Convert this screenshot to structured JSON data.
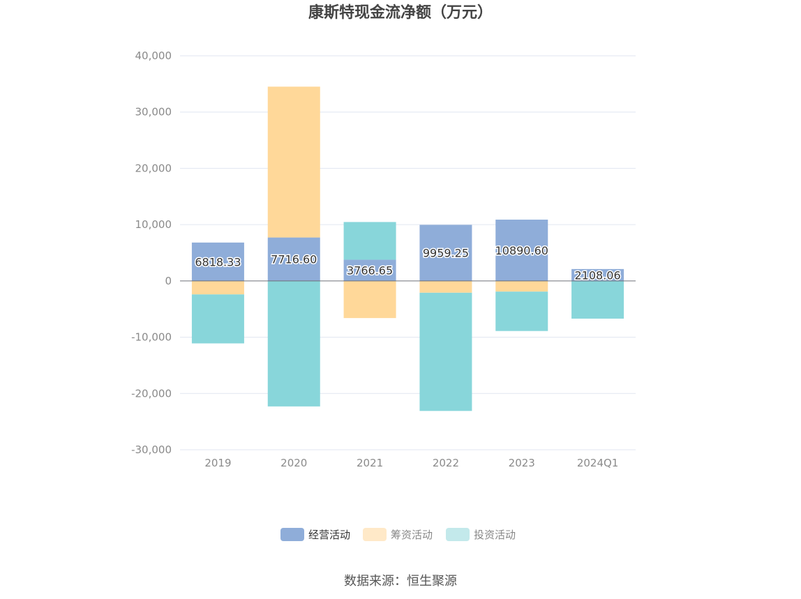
{
  "chart_data": {
    "type": "bar",
    "stacked": true,
    "title": "康斯特现金流净额（万元）",
    "categories": [
      "2019",
      "2020",
      "2021",
      "2022",
      "2023",
      "2024Q1"
    ],
    "series": [
      {
        "name": "经营活动",
        "color": "#8fadd9",
        "values": [
          6818.33,
          7716.6,
          3766.65,
          9959.25,
          10890.6,
          2108.06
        ],
        "labels": [
          "6818.33",
          "7716.60",
          "3766.65",
          "9959.25",
          "10890.60",
          "2108.06"
        ]
      },
      {
        "name": "筹资活动",
        "color": "#ffd899",
        "values": [
          -2400,
          26800,
          -6600,
          -2100,
          -1900,
          0
        ]
      },
      {
        "name": "投资活动",
        "color": "#88d6da",
        "values": [
          -8700,
          -22300,
          6700,
          -21000,
          -7000,
          -6700
        ]
      }
    ],
    "yticks": [
      "40,000",
      "30,000",
      "20,000",
      "10,000",
      "0",
      "-10,000",
      "-20,000",
      "-30,000"
    ],
    "ylim": [
      -30000,
      40000
    ],
    "grid": true,
    "legend_position": "bottom"
  },
  "legend": {
    "items": [
      "经营活动",
      "筹资活动",
      "投资活动"
    ],
    "active_color": "#333333",
    "inactive_color": "#888888"
  },
  "source": "数据来源：恒生聚源"
}
